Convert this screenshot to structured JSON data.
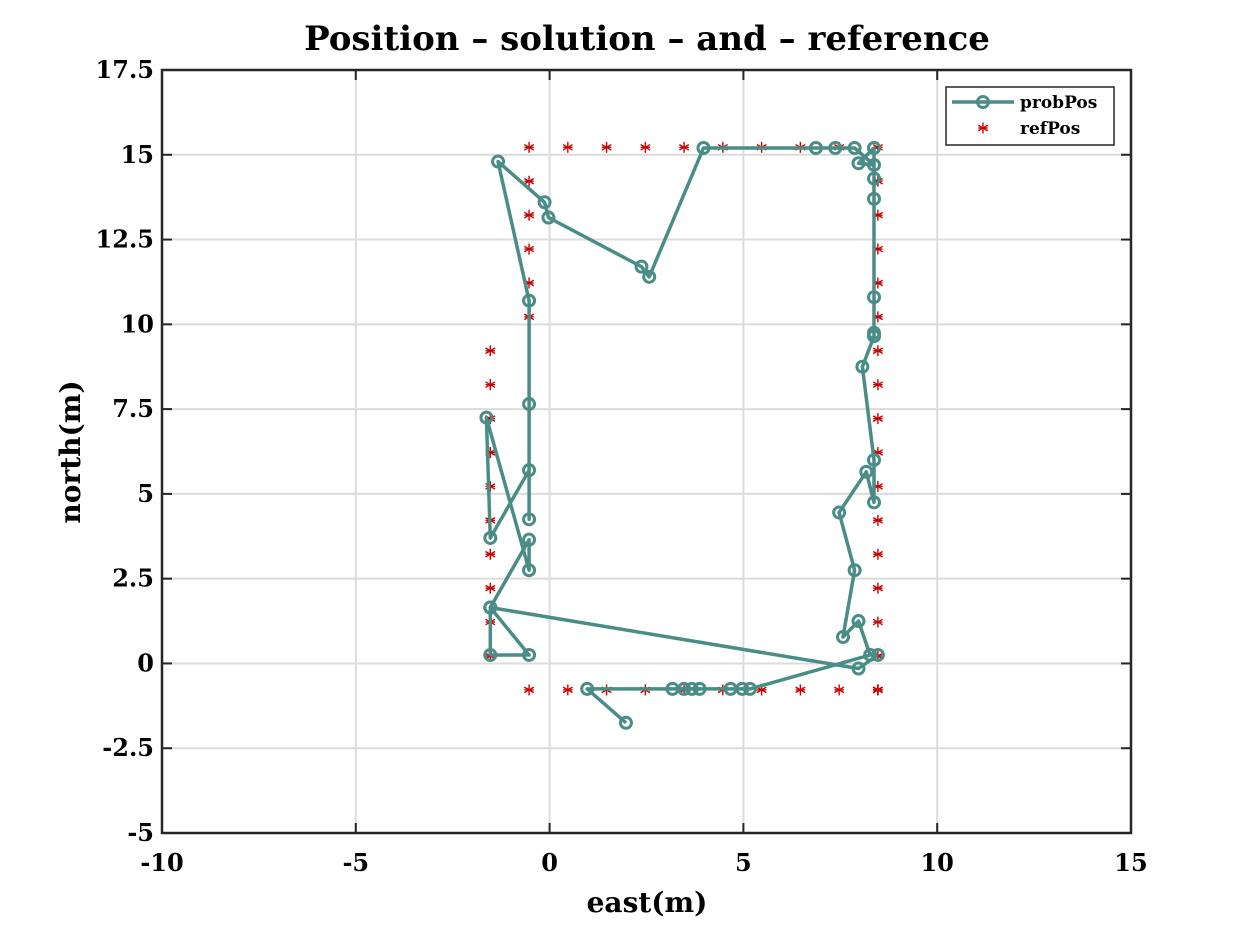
{
  "chart_data": {
    "type": "line",
    "title": "Position – solution – and – reference",
    "xlabel": "east(m)",
    "ylabel": "north(m)",
    "xlim": [
      -10,
      15
    ],
    "ylim": [
      -5,
      17.5
    ],
    "xticks": [
      -10,
      -5,
      0,
      5,
      10,
      15
    ],
    "yticks": [
      -5,
      -2.5,
      0,
      2.5,
      5,
      7.5,
      10,
      12.5,
      15,
      17.5
    ],
    "xtick_labels": [
      "-10",
      "-5",
      "0",
      "5",
      "10",
      "15"
    ],
    "ytick_labels": [
      "-5",
      "-2.5",
      "0",
      "2.5",
      "5",
      "7.5",
      "10",
      "12.5",
      "15",
      "17.5"
    ],
    "grid": true,
    "legend_position": "top-right",
    "series": [
      {
        "name": "probPos",
        "style": "line-circle",
        "color": "#4a8c86",
        "x": [
          1.97,
          0.97,
          3.17,
          3.47,
          3.67,
          3.87,
          4.67,
          4.97,
          5.17,
          8.27,
          7.97,
          7.57,
          7.87,
          7.47,
          8.17,
          8.37,
          8.37,
          8.07,
          8.37,
          8.37,
          8.37,
          8.37,
          8.37,
          8.37,
          7.97,
          8.37,
          7.87,
          7.37,
          6.87,
          3.97,
          2.57,
          2.37,
          -0.03,
          -0.13,
          -1.33,
          -0.53,
          -0.53,
          -0.53,
          -0.53,
          -1.53,
          -1.63,
          -0.53,
          -0.53,
          -1.53,
          -1.53,
          -0.53,
          -1.53,
          7.97,
          8.47
        ],
        "y": [
          -1.75,
          -0.75,
          -0.75,
          -0.75,
          -0.75,
          -0.75,
          -0.75,
          -0.75,
          -0.75,
          0.25,
          1.25,
          0.78,
          2.75,
          4.45,
          5.65,
          4.75,
          6.0,
          8.75,
          9.65,
          9.75,
          10.8,
          13.7,
          14.3,
          15.2,
          14.75,
          14.7,
          15.2,
          15.2,
          15.2,
          15.2,
          11.4,
          11.7,
          13.15,
          13.6,
          14.8,
          10.7,
          7.65,
          4.25,
          5.7,
          3.7,
          7.25,
          2.75,
          3.65,
          1.65,
          0.25,
          0.25,
          1.65,
          -0.15,
          0.25
        ],
        "order_note_hidden": true
      },
      {
        "name": "refPos",
        "style": "asterisk",
        "color": "#cc0000",
        "x": [
          -0.53,
          0.47,
          1.47,
          2.47,
          3.47,
          4.47,
          5.47,
          6.47,
          7.47,
          8.47,
          8.47,
          8.47,
          8.47,
          8.47,
          8.47,
          8.47,
          8.47,
          8.47,
          8.47,
          8.47,
          8.47,
          8.47,
          8.47,
          8.47,
          8.47,
          8.47,
          8.47,
          8.47,
          8.47,
          7.47,
          6.47,
          5.47,
          4.47,
          3.47,
          2.47,
          1.47,
          0.47,
          -0.53,
          -1.53,
          -1.53,
          -1.53,
          -1.53,
          -1.53,
          -1.53,
          -1.53,
          -1.53,
          -1.53,
          -1.53,
          -0.53,
          -0.53,
          -0.53,
          -0.53,
          -0.53
        ],
        "y": [
          15.22,
          15.22,
          15.22,
          15.22,
          15.22,
          15.22,
          15.22,
          15.22,
          15.22,
          15.22,
          14.22,
          13.22,
          12.22,
          11.22,
          10.22,
          9.22,
          8.22,
          7.22,
          6.22,
          5.22,
          4.22,
          3.22,
          2.22,
          1.22,
          0.22,
          -0.78,
          -0.78,
          -0.78,
          -0.78,
          -0.78,
          -0.78,
          -0.78,
          -0.78,
          -0.78,
          -0.78,
          -0.78,
          -0.78,
          -0.78,
          0.22,
          1.22,
          2.22,
          3.22,
          4.22,
          5.22,
          6.22,
          7.22,
          8.22,
          9.22,
          10.22,
          11.22,
          12.22,
          13.22,
          14.22
        ]
      }
    ]
  }
}
